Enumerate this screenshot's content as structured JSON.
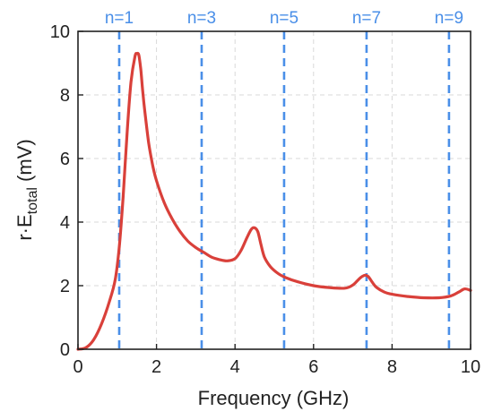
{
  "chart_data": {
    "type": "line",
    "xlabel": "Frequency (GHz)",
    "ylabel_main": "r·E",
    "ylabel_sub": "total",
    "ylabel_unit": " (mV)",
    "xlim": [
      0,
      10
    ],
    "ylim": [
      0,
      10
    ],
    "x_ticks": [
      "0",
      "2",
      "4",
      "6",
      "8",
      "10"
    ],
    "y_ticks": [
      "0",
      "2",
      "4",
      "6",
      "8",
      "10"
    ],
    "grid": true,
    "line_color": "#d9403a",
    "marker_color": "#4a8fe8",
    "series": [
      {
        "x": [
          0,
          0.2,
          0.4,
          0.6,
          0.8,
          0.95,
          1.05,
          1.15,
          1.25,
          1.35,
          1.45,
          1.5,
          1.55,
          1.6,
          1.65,
          1.7,
          1.8,
          1.9,
          2.0,
          2.2,
          2.4,
          2.6,
          2.8,
          3.0,
          3.2,
          3.4,
          3.6,
          3.8,
          4.0,
          4.15,
          4.3,
          4.42,
          4.5,
          4.58,
          4.66,
          4.75,
          4.9,
          5.1,
          5.3,
          5.6,
          6.0,
          6.4,
          6.8,
          7.0,
          7.15,
          7.25,
          7.32,
          7.4,
          7.5,
          7.6,
          7.8,
          8.0,
          8.4,
          8.8,
          9.2,
          9.5,
          9.7,
          9.85,
          10.0
        ],
        "y": [
          0,
          0.05,
          0.3,
          0.8,
          1.5,
          2.2,
          3.2,
          4.8,
          6.8,
          8.4,
          9.2,
          9.3,
          9.25,
          8.8,
          8.1,
          7.5,
          6.5,
          5.8,
          5.3,
          4.6,
          4.1,
          3.7,
          3.4,
          3.2,
          3.05,
          2.9,
          2.82,
          2.78,
          2.85,
          3.1,
          3.5,
          3.78,
          3.82,
          3.7,
          3.3,
          2.9,
          2.6,
          2.38,
          2.25,
          2.12,
          2.0,
          1.94,
          1.92,
          2.02,
          2.2,
          2.3,
          2.33,
          2.28,
          2.1,
          1.95,
          1.8,
          1.73,
          1.66,
          1.62,
          1.62,
          1.68,
          1.8,
          1.9,
          1.85
        ]
      }
    ],
    "markers": [
      {
        "label": "n=1",
        "x": 1.05
      },
      {
        "label": "n=3",
        "x": 3.15
      },
      {
        "label": "n=5",
        "x": 5.25
      },
      {
        "label": "n=7",
        "x": 7.35
      },
      {
        "label": "n=9",
        "x": 9.45
      }
    ]
  }
}
